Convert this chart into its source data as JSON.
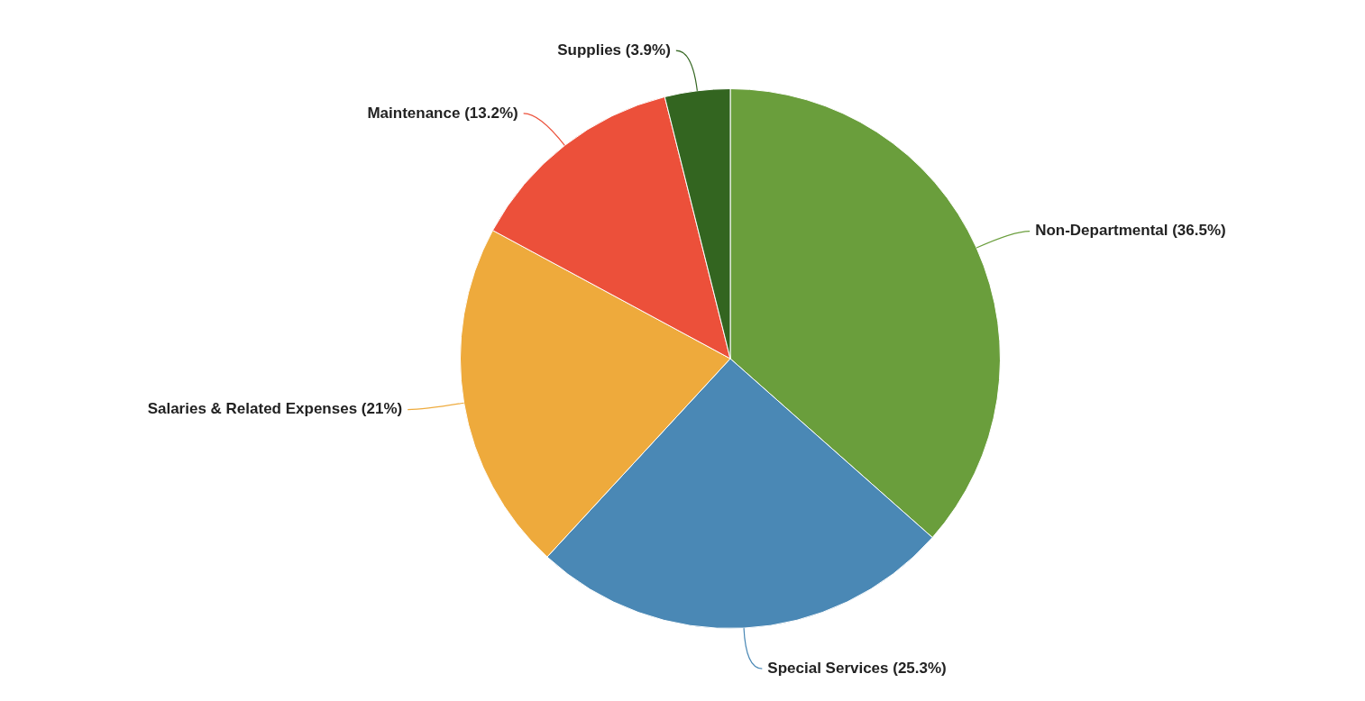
{
  "chart_data": {
    "type": "pie",
    "categories": [
      "Non-Departmental",
      "Special Services",
      "Salaries & Related Expenses",
      "Maintenance",
      "Supplies"
    ],
    "values": [
      36.5,
      25.3,
      21,
      13.2,
      3.9
    ],
    "value_labels": [
      "(36.5%)",
      "(25.3%)",
      "(21%)",
      "(13.2%)",
      "(3.9%)"
    ],
    "colors": [
      "#6a9e3c",
      "#4a88b5",
      "#eeaa3c",
      "#ec503a",
      "#336520"
    ],
    "legend": false
  }
}
